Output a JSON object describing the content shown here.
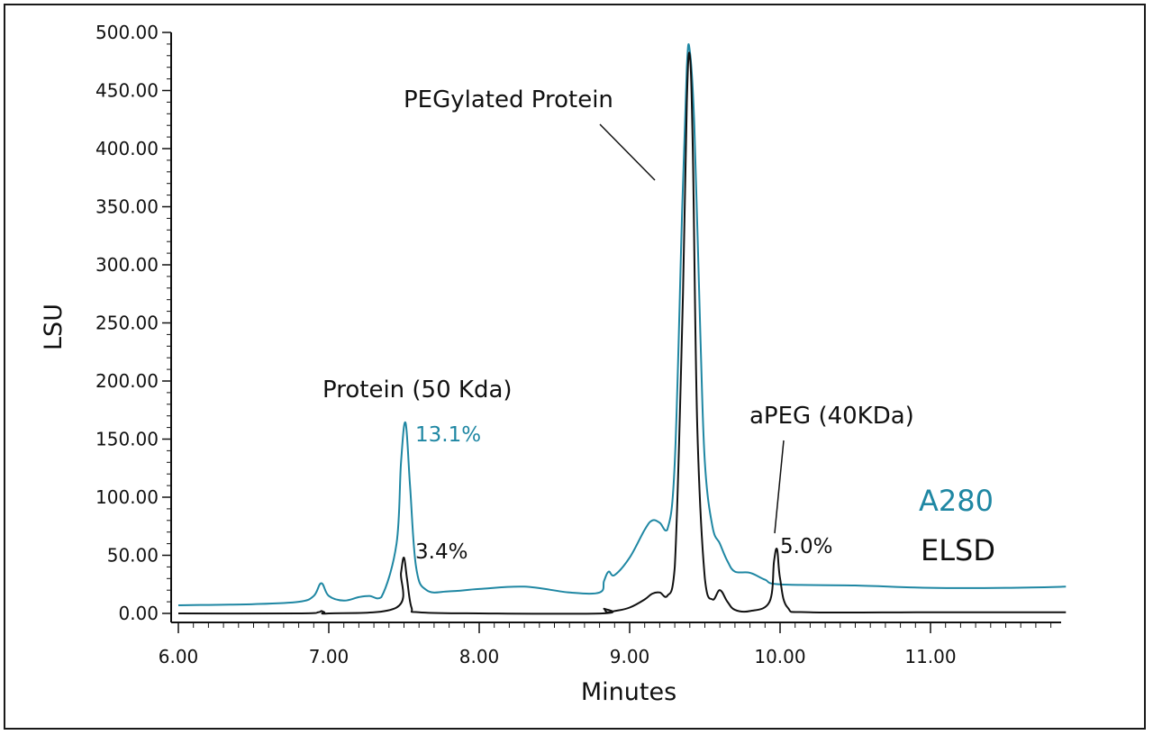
{
  "chart_data": {
    "type": "line",
    "xlabel": "Minutes",
    "ylabel": "LSU",
    "xlim": [
      6.0,
      11.9
    ],
    "ylim": [
      0,
      500
    ],
    "x_ticks": [
      "6.00",
      "7.00",
      "8.00",
      "9.00",
      "10.00",
      "11.00"
    ],
    "y_ticks": [
      "0.00",
      "50.00",
      "100.00",
      "150.00",
      "200.00",
      "250.00",
      "300.00",
      "350.00",
      "400.00",
      "450.00",
      "500.00"
    ],
    "grid": false,
    "legend_position": "right",
    "series": [
      {
        "name": "A280",
        "color": "#1f87a3",
        "x": [
          6.0,
          6.5,
          6.8,
          6.9,
          6.95,
          7.0,
          7.1,
          7.2,
          7.27,
          7.35,
          7.45,
          7.48,
          7.51,
          7.54,
          7.58,
          7.65,
          7.8,
          8.0,
          8.3,
          8.6,
          8.8,
          8.83,
          8.86,
          8.9,
          9.0,
          9.1,
          9.15,
          9.2,
          9.25,
          9.3,
          9.35,
          9.38,
          9.4,
          9.43,
          9.47,
          9.5,
          9.55,
          9.6,
          9.65,
          9.7,
          9.8,
          9.9,
          10.0,
          10.5,
          11.0,
          11.5,
          11.9
        ],
        "values": [
          7,
          8,
          10,
          15,
          26,
          15,
          11,
          14,
          15,
          14,
          60,
          130,
          164,
          110,
          40,
          20,
          19,
          21,
          23,
          18,
          18,
          28,
          36,
          33,
          48,
          72,
          80,
          78,
          72,
          130,
          350,
          470,
          484,
          420,
          240,
          130,
          75,
          60,
          45,
          36,
          35,
          29,
          25,
          24,
          22,
          22,
          23
        ]
      },
      {
        "name": "ELSD",
        "color": "#111111",
        "x": [
          6.0,
          6.8,
          6.93,
          6.95,
          6.97,
          7.0,
          7.45,
          7.48,
          7.5,
          7.52,
          7.55,
          7.6,
          8.0,
          8.82,
          8.83,
          8.85,
          8.9,
          9.0,
          9.1,
          9.15,
          9.2,
          9.25,
          9.3,
          9.35,
          9.38,
          9.4,
          9.42,
          9.45,
          9.5,
          9.55,
          9.6,
          9.65,
          9.7,
          9.8,
          9.93,
          9.96,
          9.98,
          10.0,
          10.05,
          10.2,
          11.0,
          11.9
        ],
        "values": [
          0,
          0,
          1,
          2,
          1,
          0,
          5,
          35,
          48,
          30,
          5,
          1,
          0,
          0,
          4,
          1,
          2,
          5,
          12,
          17,
          18,
          15,
          40,
          250,
          440,
          480,
          400,
          160,
          30,
          12,
          20,
          10,
          3,
          2,
          10,
          45,
          55,
          30,
          5,
          1,
          1,
          1
        ]
      }
    ],
    "annotations": [
      {
        "text": "PEGylated Protein"
      },
      {
        "text": "Protein (50 Kda)"
      },
      {
        "text": "aPEG (40KDa)"
      },
      {
        "text": "13.1%",
        "series": "A280"
      },
      {
        "text": "3.4%",
        "series": "ELSD"
      },
      {
        "text": "5.0%",
        "series": "ELSD"
      }
    ]
  }
}
